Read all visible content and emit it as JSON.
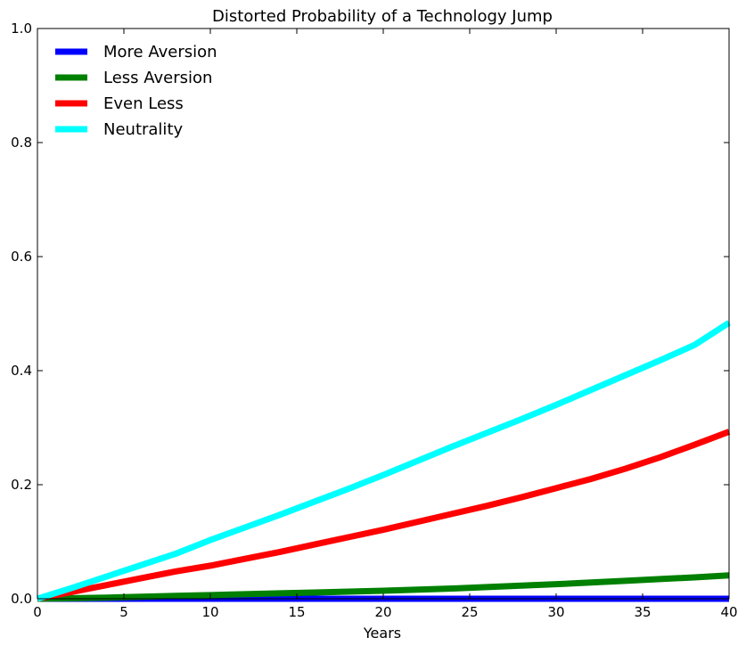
{
  "chart_data": {
    "type": "line",
    "title": "Distorted Probability of a Technology Jump",
    "xlabel": "Years",
    "ylabel": "",
    "xlim": [
      0,
      40
    ],
    "ylim": [
      0,
      1
    ],
    "xticks": [
      0,
      5,
      10,
      15,
      20,
      25,
      30,
      35,
      40
    ],
    "yticks": [
      0.0,
      0.2,
      0.4,
      0.6,
      0.8,
      1.0
    ],
    "xtick_labels": [
      "0",
      "5",
      "10",
      "15",
      "20",
      "25",
      "30",
      "35",
      "40"
    ],
    "ytick_labels": [
      "0.0",
      "0.2",
      "0.4",
      "0.6",
      "0.8",
      "1.0"
    ],
    "grid": false,
    "legend": {
      "placement": "top-left",
      "frame": false
    },
    "x": [
      0,
      2,
      4,
      6,
      8,
      10,
      12,
      14,
      16,
      18,
      20,
      22,
      24,
      26,
      28,
      30,
      32,
      34,
      36,
      38,
      40
    ],
    "series": [
      {
        "name": "More Aversion",
        "color": "#0000ff",
        "values": [
          0,
          0,
          0,
          0,
          0,
          0,
          0,
          0,
          0,
          0,
          0,
          0,
          0,
          0,
          0,
          0,
          0,
          0,
          0,
          0,
          0
        ]
      },
      {
        "name": "Less Aversion",
        "color": "#008000",
        "values": [
          0.0,
          0.001,
          0.002,
          0.0035,
          0.005,
          0.0065,
          0.008,
          0.0095,
          0.011,
          0.0125,
          0.014,
          0.016,
          0.018,
          0.0205,
          0.023,
          0.0255,
          0.0285,
          0.0315,
          0.0345,
          0.0375,
          0.041
        ]
      },
      {
        "name": "Even Less",
        "color": "#ff0000",
        "values": [
          0.0,
          0.012,
          0.024,
          0.036,
          0.048,
          0.058,
          0.07,
          0.082,
          0.095,
          0.108,
          0.121,
          0.135,
          0.149,
          0.163,
          0.178,
          0.194,
          0.21,
          0.228,
          0.248,
          0.27,
          0.293
        ]
      },
      {
        "name": "Neutrality",
        "color": "#00ffff",
        "values": [
          0.0,
          0.019,
          0.039,
          0.059,
          0.079,
          0.103,
          0.125,
          0.147,
          0.17,
          0.193,
          0.217,
          0.242,
          0.267,
          0.291,
          0.315,
          0.34,
          0.366,
          0.392,
          0.418,
          0.445,
          0.484
        ]
      }
    ]
  }
}
